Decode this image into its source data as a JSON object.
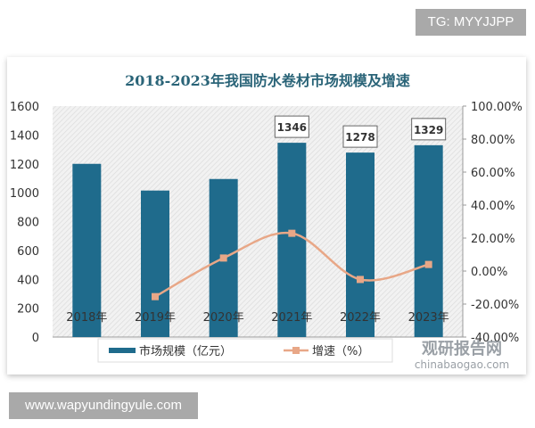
{
  "watermark_top": "TG: MYYJJPP",
  "watermark_bottom": "www.wapyundingyule.com",
  "logo": {
    "name": "观研报告网",
    "url": "chinabaogao.com"
  },
  "colors": {
    "bar": "#1f6b8c",
    "line": "#e8a787",
    "title": "#2a6478"
  },
  "chart_data": {
    "type": "bar+line",
    "title": "2018-2023年我国防水卷材市场规模及增速",
    "categories": [
      "2018年",
      "2019年",
      "2020年",
      "2021年",
      "2022年",
      "2023年"
    ],
    "series": [
      {
        "name": "市场规模（亿元）",
        "type": "bar",
        "axis": "left",
        "values": [
          1200,
          1015,
          1095,
          1346,
          1278,
          1329
        ],
        "data_labels": [
          null,
          null,
          null,
          "1346",
          "1278",
          "1329"
        ]
      },
      {
        "name": "增速（%）",
        "type": "line",
        "axis": "right",
        "values": [
          null,
          -15.5,
          7.9,
          22.9,
          -5.1,
          4.0
        ]
      }
    ],
    "y_left": {
      "range": [
        0,
        1600
      ],
      "ticks": [
        "0",
        "200",
        "400",
        "600",
        "800",
        "1000",
        "1200",
        "1400",
        "1600"
      ]
    },
    "y_right": {
      "range": [
        -40,
        100
      ],
      "ticks": [
        "-40.00%",
        "-20.00%",
        "0.00%",
        "20.00%",
        "40.00%",
        "60.00%",
        "80.00%",
        "100.00%"
      ]
    },
    "grid": false,
    "legend": "bottom"
  }
}
